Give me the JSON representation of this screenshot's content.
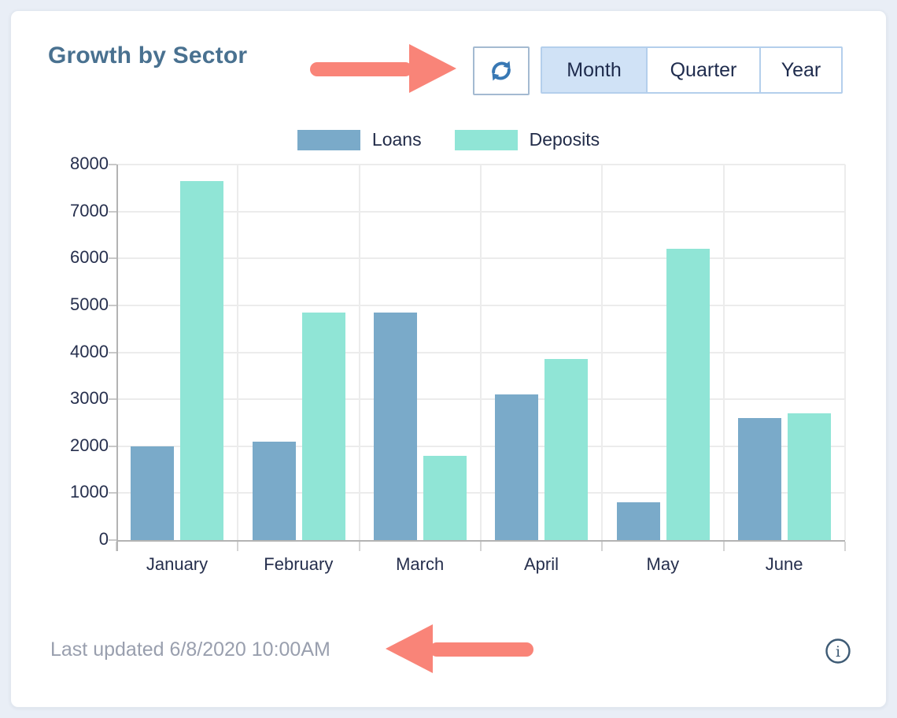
{
  "card": {
    "title": "Growth by Sector",
    "toolbar": {
      "refresh_icon": "sync-icon",
      "segments": [
        {
          "label": "Month",
          "selected": true
        },
        {
          "label": "Quarter",
          "selected": false
        },
        {
          "label": "Year",
          "selected": false
        }
      ]
    },
    "footer": {
      "last_updated": "Last updated 6/8/2020 10:00AM",
      "info_icon": "info-icon"
    },
    "annotations": [
      {
        "name": "arrow-pointing-right-at-refresh-button",
        "color": "#f98478"
      },
      {
        "name": "arrow-pointing-left-at-last-updated",
        "color": "#f98478"
      }
    ]
  },
  "colors": {
    "page_background": "#e9eef6",
    "card_background": "#ffffff",
    "title": "#497190",
    "selected_segment_fill": "#d0e2f6",
    "segment_border": "#b4cfec",
    "annotation_arrow": "#f98478",
    "refresh_icon": "#3878b4",
    "info_icon": "#3d5a74",
    "footer_text": "#999fae",
    "loans_bar": "#7aaac9",
    "deposits_bar": "#90e5d6"
  },
  "chart_data": {
    "type": "bar",
    "title": "",
    "categories": [
      "January",
      "February",
      "March",
      "April",
      "May",
      "June"
    ],
    "series": [
      {
        "name": "Loans",
        "color": "#7aaac9",
        "values": [
          2000,
          2100,
          4850,
          3100,
          800,
          2600
        ]
      },
      {
        "name": "Deposits",
        "color": "#90e5d6",
        "values": [
          7650,
          4850,
          1800,
          3850,
          6200,
          2700
        ]
      }
    ],
    "xlabel": "",
    "ylabel": "",
    "ylim": [
      0,
      8000
    ],
    "yticks": [
      0,
      1000,
      2000,
      3000,
      4000,
      5000,
      6000,
      7000,
      8000
    ],
    "grid": true,
    "legend_position": "top-center"
  }
}
